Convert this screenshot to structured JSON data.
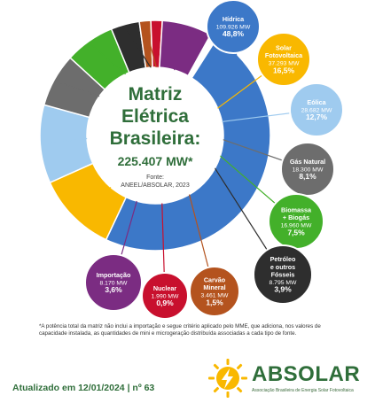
{
  "center": {
    "title_lines": [
      "Matriz",
      "Elétrica",
      "Brasileira:"
    ],
    "total": "225.407 MW*",
    "source_label": "Fonte:",
    "source": "ANEEL/ABSOLAR, 2023"
  },
  "chart_data": {
    "type": "pie",
    "title": "Matriz Elétrica Brasileira: 225.407 MW*",
    "total_mw": 225407,
    "unit": "MW",
    "slices": [
      {
        "id": "hidrica",
        "name_lines": [
          "Hídrica"
        ],
        "value_label": "109.926 MW",
        "value": 109926,
        "percent_label": "48,8%",
        "percent": 48.8,
        "color": "#3c78c8"
      },
      {
        "id": "solar",
        "name_lines": [
          "Solar",
          "Fotovoltaica"
        ],
        "value_label": "37.293 MW",
        "value": 37293,
        "percent_label": "16,5%",
        "percent": 16.5,
        "color": "#f9b800"
      },
      {
        "id": "eolica",
        "name_lines": [
          "Eólica"
        ],
        "value_label": "28.682 MW",
        "value": 28682,
        "percent_label": "12,7%",
        "percent": 12.7,
        "color": "#9fcbef"
      },
      {
        "id": "gas",
        "name_lines": [
          "Gás Natural"
        ],
        "value_label": "18.300 MW",
        "value": 18300,
        "percent_label": "8,1%",
        "percent": 8.1,
        "color": "#6d6d6d"
      },
      {
        "id": "biomassa",
        "name_lines": [
          "Biomassa",
          "+ Biogás"
        ],
        "value_label": "16.960 MW",
        "value": 16960,
        "percent_label": "7,5%",
        "percent": 7.5,
        "color": "#43b02a"
      },
      {
        "id": "petroleo",
        "name_lines": [
          "Petróleo",
          "e outros",
          "Fósseis"
        ],
        "value_label": "8.795 MW",
        "value": 8795,
        "percent_label": "3,9%",
        "percent": 3.9,
        "color": "#2e2e2e"
      },
      {
        "id": "carvao",
        "name_lines": [
          "Carvão",
          "Mineral"
        ],
        "value_label": "3.461 MW",
        "value": 3461,
        "percent_label": "1,5%",
        "percent": 1.5,
        "color": "#b4531e"
      },
      {
        "id": "nuclear",
        "name_lines": [
          "Nuclear"
        ],
        "value_label": "1.990 MW",
        "value": 1990,
        "percent_label": "0,9%",
        "percent": 0.9,
        "color": "#c8102e"
      },
      {
        "id": "importacao",
        "name_lines": [
          "Importação"
        ],
        "value_label": "8.170 MW",
        "value": 8170,
        "percent_label": "3,6%",
        "percent": 3.6,
        "color": "#7b2c82"
      }
    ]
  },
  "footnote": "*A potência total da matriz não inclui a importação e segue critério aplicado pelo MME, que adiciona, nos valores de capacidade instalada, as quantidades de mini e microgeração distribuída associadas a cada tipo de fonte.",
  "updated": "Atualizado em 12/01/2024 | nº 63",
  "brand": {
    "name": "ABSOLAR",
    "subtitle": "Associação Brasileira de Energia Solar Fotovoltaica",
    "icon": "sun-bolt-icon",
    "color": "#2f6e3a"
  }
}
